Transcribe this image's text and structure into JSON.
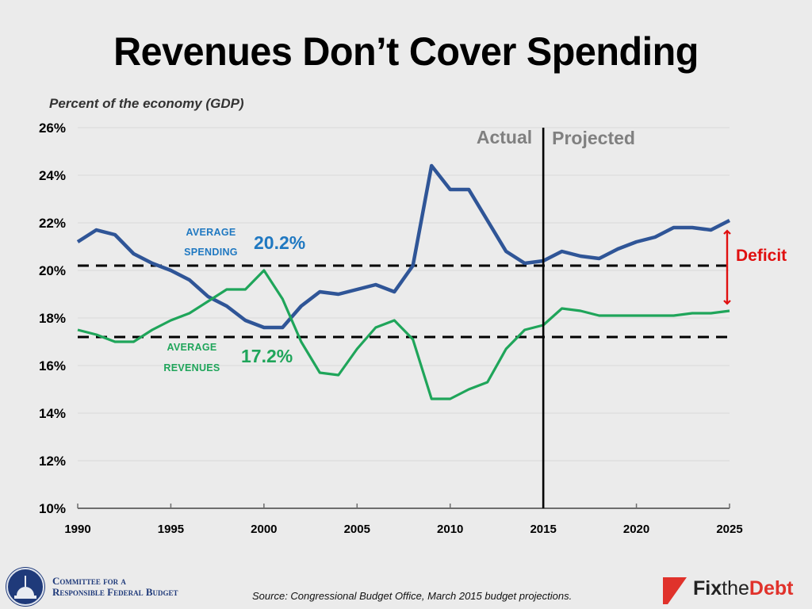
{
  "title": "Revenues Don’t Cover Spending",
  "subtitle": "Percent of the economy (GDP)",
  "colors": {
    "background": "#ebebeb",
    "spending": "#2f5597",
    "revenues": "#1fa55a",
    "spending_label": "#1f78c1",
    "revenues_label": "#1fa55a",
    "deficit": "#e01010",
    "phase_label": "#808080",
    "gridline": "#dcdcdc"
  },
  "chart_data": {
    "type": "line",
    "title": "Revenues Don’t Cover Spending",
    "ylabel": "Percent of the economy (GDP)",
    "xlabel": "",
    "x": [
      1990,
      1991,
      1992,
      1993,
      1994,
      1995,
      1996,
      1997,
      1998,
      1999,
      2000,
      2001,
      2002,
      2003,
      2004,
      2005,
      2006,
      2007,
      2008,
      2009,
      2010,
      2011,
      2012,
      2013,
      2014,
      2015,
      2016,
      2017,
      2018,
      2019,
      2020,
      2021,
      2022,
      2023,
      2024,
      2025
    ],
    "series": [
      {
        "name": "Spending",
        "values": [
          21.2,
          21.7,
          21.5,
          20.7,
          20.3,
          20.0,
          19.6,
          18.9,
          18.5,
          17.9,
          17.6,
          17.6,
          18.5,
          19.1,
          19.0,
          19.2,
          19.4,
          19.1,
          20.2,
          24.4,
          23.4,
          23.4,
          22.1,
          20.8,
          20.3,
          20.4,
          20.8,
          20.6,
          20.5,
          20.9,
          21.2,
          21.4,
          21.8,
          21.8,
          21.7,
          22.1
        ]
      },
      {
        "name": "Revenues",
        "values": [
          17.5,
          17.3,
          17.0,
          17.0,
          17.5,
          17.9,
          18.2,
          18.7,
          19.2,
          19.2,
          20.0,
          18.8,
          17.0,
          15.7,
          15.6,
          16.7,
          17.6,
          17.9,
          17.1,
          14.6,
          14.6,
          15.0,
          15.3,
          16.7,
          17.5,
          17.7,
          18.4,
          18.3,
          18.1,
          18.1,
          18.1,
          18.1,
          18.1,
          18.2,
          18.2,
          18.3
        ]
      }
    ],
    "reference_lines": [
      {
        "name": "Average Spending",
        "value": 20.2,
        "label_small": [
          "AVERAGE",
          "SPENDING"
        ],
        "label_big": "20.2%"
      },
      {
        "name": "Average Revenues",
        "value": 17.2,
        "label_small": [
          "AVERAGE",
          "REVENUES"
        ],
        "label_big": "17.2%"
      }
    ],
    "divider": {
      "year": 2015,
      "left_label": "Actual",
      "right_label": "Projected"
    },
    "annotation": {
      "label": "Deficit",
      "year": 2025,
      "from": 18.3,
      "to": 22.1
    },
    "ylim": [
      10,
      26
    ],
    "yticks": [
      10,
      12,
      14,
      16,
      18,
      20,
      22,
      24,
      26
    ],
    "ytick_labels": [
      "10%",
      "12%",
      "14%",
      "16%",
      "18%",
      "20%",
      "22%",
      "24%",
      "26%"
    ],
    "xlim": [
      1990,
      2025
    ],
    "xticks": [
      1990,
      1995,
      2000,
      2005,
      2010,
      2015,
      2020,
      2025
    ],
    "xtick_labels": [
      "1990",
      "1995",
      "2000",
      "2005",
      "2010",
      "2015",
      "2020",
      "2025"
    ],
    "grid": true,
    "legend": "none (inline labels)"
  },
  "footer": {
    "org_line1": "Committee for a",
    "org_line2": "Responsible Federal Budget",
    "source": "Source: Congressional Budget Office, March 2015 budget projections.",
    "brand_fix": "Fix",
    "brand_the": "the",
    "brand_debt": "Debt"
  }
}
